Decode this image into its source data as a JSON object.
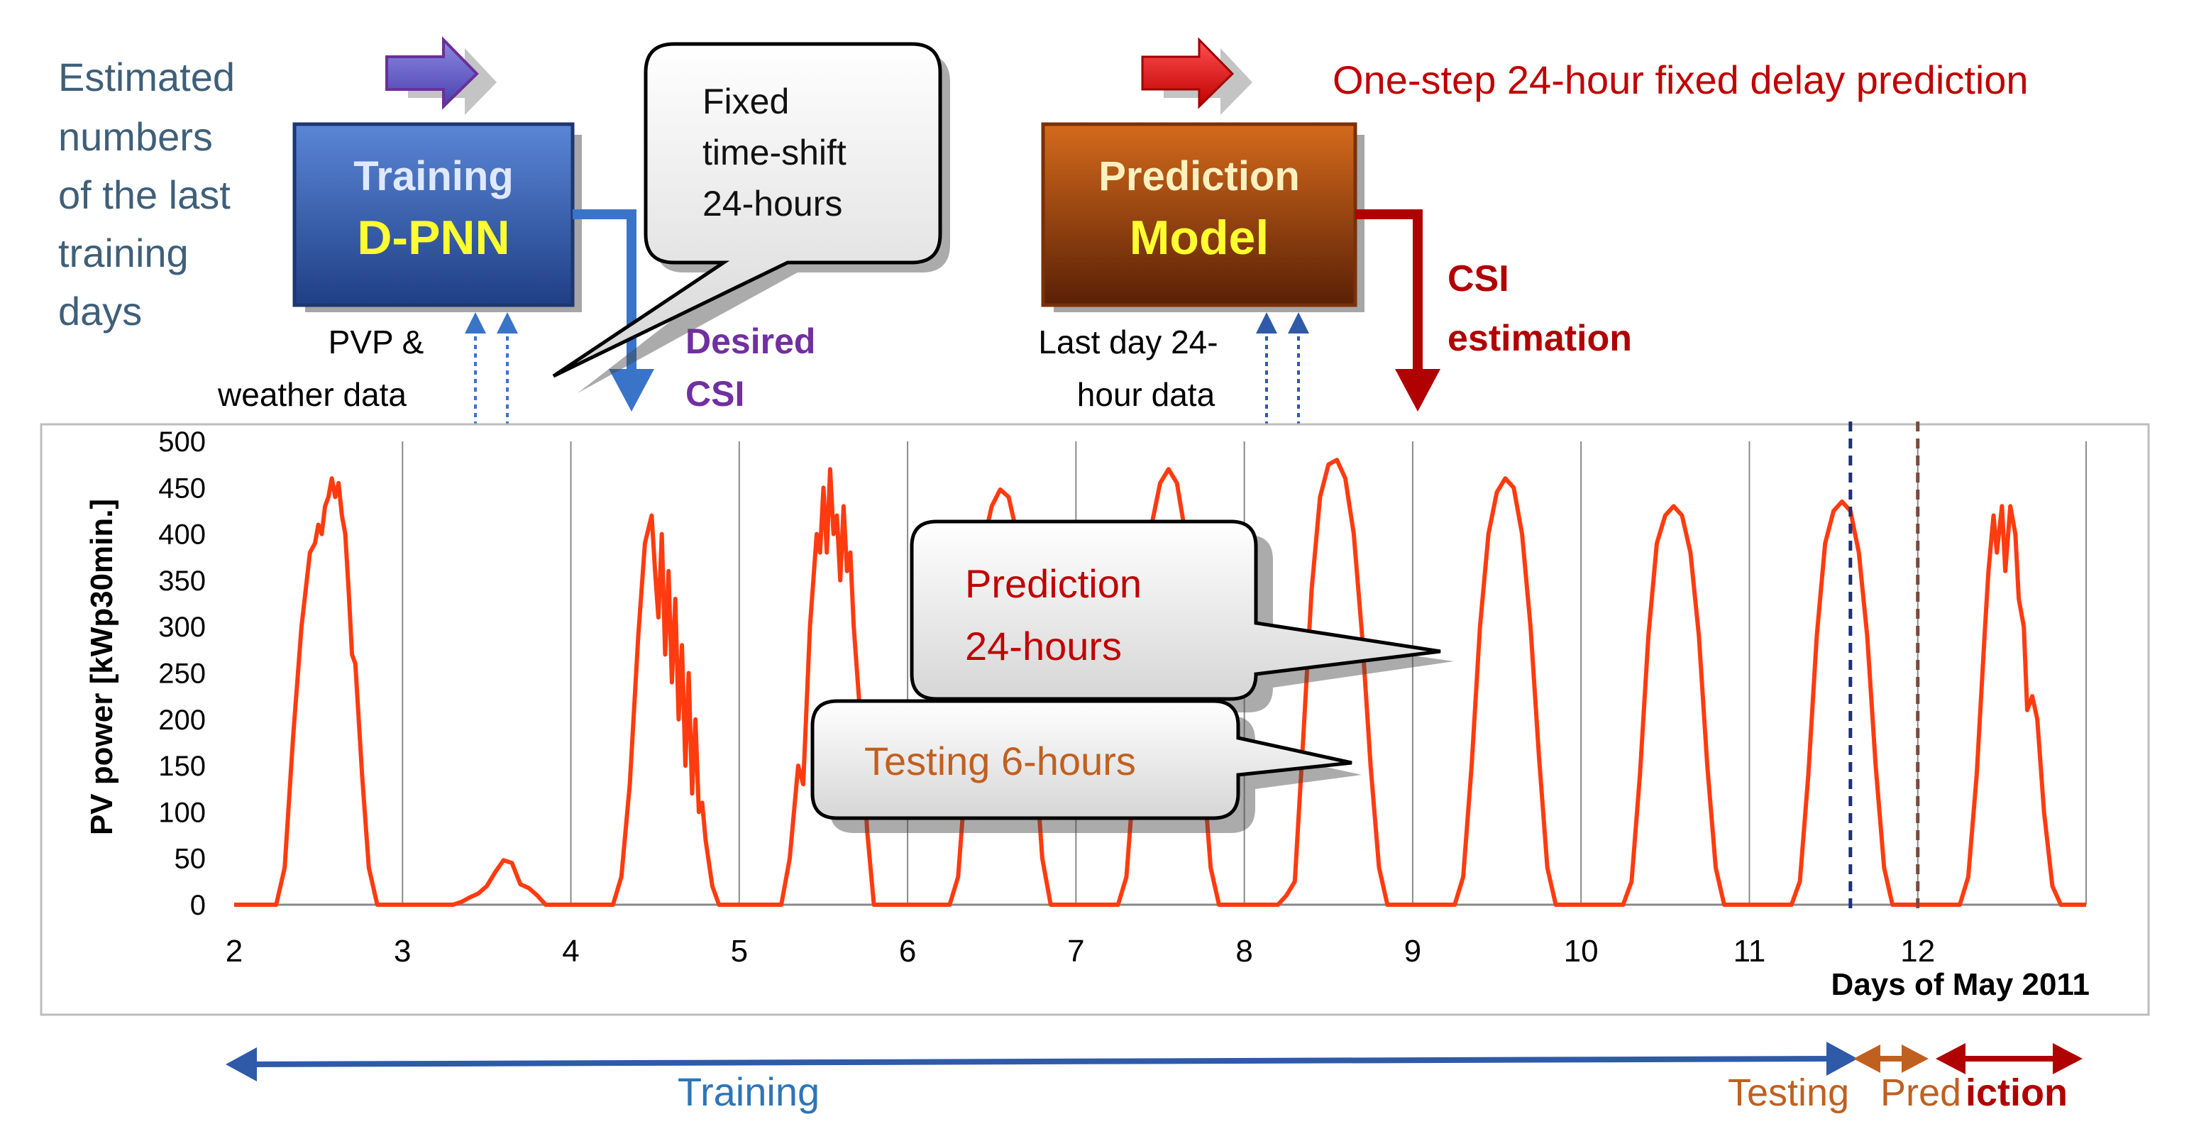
{
  "header": {
    "left_note_lines": [
      "Estimated",
      "numbers",
      "of the last",
      "training",
      "days"
    ],
    "right_note": "One-step 24-hour fixed delay prediction"
  },
  "training_box": {
    "line1": "Training",
    "line2": "D-PNN"
  },
  "prediction_box": {
    "line1": "Prediction",
    "line2": "Model"
  },
  "callout_timeshift": {
    "lines": [
      "Fixed",
      "time-shift",
      "24-hours"
    ]
  },
  "callout_prediction": {
    "lines": [
      "Prediction",
      "24-hours"
    ]
  },
  "callout_testing": {
    "text": "Testing 6-hours"
  },
  "labels": {
    "pvp_weather": [
      "PVP &",
      "weather data"
    ],
    "desired_csi": [
      "Desired",
      "CSI"
    ],
    "last_day": [
      "Last day 24-",
      "hour data"
    ],
    "csi_estimation": [
      "CSI",
      "estimation"
    ]
  },
  "bottom": {
    "training": "Training",
    "testing": "Testing",
    "prediction_a": "Pred",
    "prediction_b": "iction"
  },
  "colors": {
    "series": "#ff3b0f",
    "training_blue": "#2e5aa8",
    "prediction_orange": "#b85410",
    "dark_red": "#b00000",
    "note_teal": "#3f5f79",
    "testing_orange": "#c06020",
    "purple": "#7030a0"
  },
  "chart_data": {
    "type": "line",
    "title": "",
    "xlabel": "Days of May 2011",
    "ylabel": "PV power [kWp30min.]",
    "xlim": [
      2,
      13
    ],
    "ylim": [
      0,
      500
    ],
    "x_ticks": [
      2,
      3,
      4,
      5,
      6,
      7,
      8,
      9,
      10,
      11,
      12
    ],
    "y_ticks": [
      0,
      50,
      100,
      150,
      200,
      250,
      300,
      350,
      400,
      450,
      500
    ],
    "grid": "vertical lines at each day",
    "legend": "none",
    "series": [
      {
        "values_note": "x in days of May 2011, y in kWp30min.",
        "points": [
          [
            2.0,
            0
          ],
          [
            2.25,
            0
          ],
          [
            2.3,
            40
          ],
          [
            2.35,
            180
          ],
          [
            2.4,
            300
          ],
          [
            2.45,
            380
          ],
          [
            2.48,
            390
          ],
          [
            2.5,
            410
          ],
          [
            2.52,
            400
          ],
          [
            2.54,
            430
          ],
          [
            2.56,
            440
          ],
          [
            2.58,
            460
          ],
          [
            2.6,
            440
          ],
          [
            2.62,
            455
          ],
          [
            2.64,
            420
          ],
          [
            2.66,
            400
          ],
          [
            2.68,
            340
          ],
          [
            2.7,
            270
          ],
          [
            2.72,
            260
          ],
          [
            2.76,
            140
          ],
          [
            2.8,
            40
          ],
          [
            2.85,
            0
          ],
          [
            3.3,
            0
          ],
          [
            3.35,
            3
          ],
          [
            3.4,
            8
          ],
          [
            3.45,
            12
          ],
          [
            3.5,
            20
          ],
          [
            3.55,
            35
          ],
          [
            3.6,
            48
          ],
          [
            3.65,
            45
          ],
          [
            3.7,
            22
          ],
          [
            3.75,
            18
          ],
          [
            3.8,
            10
          ],
          [
            3.85,
            0
          ],
          [
            4.25,
            0
          ],
          [
            4.3,
            30
          ],
          [
            4.35,
            130
          ],
          [
            4.4,
            290
          ],
          [
            4.44,
            390
          ],
          [
            4.48,
            420
          ],
          [
            4.5,
            360
          ],
          [
            4.52,
            310
          ],
          [
            4.54,
            400
          ],
          [
            4.56,
            270
          ],
          [
            4.58,
            360
          ],
          [
            4.6,
            240
          ],
          [
            4.62,
            330
          ],
          [
            4.64,
            200
          ],
          [
            4.66,
            280
          ],
          [
            4.68,
            150
          ],
          [
            4.7,
            250
          ],
          [
            4.72,
            120
          ],
          [
            4.74,
            200
          ],
          [
            4.76,
            100
          ],
          [
            4.78,
            110
          ],
          [
            4.8,
            70
          ],
          [
            4.84,
            20
          ],
          [
            4.88,
            0
          ],
          [
            5.25,
            0
          ],
          [
            5.3,
            50
          ],
          [
            5.35,
            150
          ],
          [
            5.38,
            130
          ],
          [
            5.42,
            300
          ],
          [
            5.46,
            400
          ],
          [
            5.48,
            380
          ],
          [
            5.5,
            450
          ],
          [
            5.52,
            380
          ],
          [
            5.54,
            470
          ],
          [
            5.56,
            400
          ],
          [
            5.58,
            420
          ],
          [
            5.6,
            350
          ],
          [
            5.62,
            430
          ],
          [
            5.64,
            360
          ],
          [
            5.66,
            380
          ],
          [
            5.68,
            300
          ],
          [
            5.72,
            200
          ],
          [
            5.76,
            80
          ],
          [
            5.8,
            0
          ],
          [
            6.25,
            0
          ],
          [
            6.3,
            30
          ],
          [
            6.35,
            150
          ],
          [
            6.4,
            300
          ],
          [
            6.45,
            390
          ],
          [
            6.5,
            430
          ],
          [
            6.55,
            448
          ],
          [
            6.6,
            440
          ],
          [
            6.65,
            400
          ],
          [
            6.7,
            320
          ],
          [
            6.75,
            180
          ],
          [
            6.8,
            50
          ],
          [
            6.85,
            0
          ],
          [
            7.25,
            0
          ],
          [
            7.3,
            30
          ],
          [
            7.35,
            150
          ],
          [
            7.4,
            300
          ],
          [
            7.45,
            410
          ],
          [
            7.5,
            455
          ],
          [
            7.55,
            470
          ],
          [
            7.6,
            455
          ],
          [
            7.65,
            400
          ],
          [
            7.7,
            300
          ],
          [
            7.75,
            160
          ],
          [
            7.8,
            40
          ],
          [
            7.85,
            0
          ],
          [
            8.2,
            0
          ],
          [
            8.25,
            10
          ],
          [
            8.3,
            25
          ],
          [
            8.35,
            180
          ],
          [
            8.4,
            340
          ],
          [
            8.45,
            440
          ],
          [
            8.5,
            475
          ],
          [
            8.55,
            480
          ],
          [
            8.6,
            460
          ],
          [
            8.65,
            400
          ],
          [
            8.7,
            290
          ],
          [
            8.75,
            150
          ],
          [
            8.8,
            40
          ],
          [
            8.85,
            0
          ],
          [
            9.25,
            0
          ],
          [
            9.3,
            30
          ],
          [
            9.35,
            150
          ],
          [
            9.4,
            300
          ],
          [
            9.45,
            400
          ],
          [
            9.5,
            445
          ],
          [
            9.55,
            460
          ],
          [
            9.6,
            450
          ],
          [
            9.65,
            400
          ],
          [
            9.7,
            300
          ],
          [
            9.75,
            160
          ],
          [
            9.8,
            40
          ],
          [
            9.85,
            0
          ],
          [
            10.25,
            0
          ],
          [
            10.3,
            25
          ],
          [
            10.35,
            140
          ],
          [
            10.4,
            290
          ],
          [
            10.45,
            390
          ],
          [
            10.5,
            420
          ],
          [
            10.55,
            430
          ],
          [
            10.6,
            420
          ],
          [
            10.65,
            380
          ],
          [
            10.7,
            290
          ],
          [
            10.75,
            150
          ],
          [
            10.8,
            40
          ],
          [
            10.85,
            0
          ],
          [
            11.25,
            0
          ],
          [
            11.3,
            25
          ],
          [
            11.35,
            140
          ],
          [
            11.4,
            290
          ],
          [
            11.45,
            390
          ],
          [
            11.5,
            425
          ],
          [
            11.55,
            435
          ],
          [
            11.6,
            425
          ],
          [
            11.65,
            380
          ],
          [
            11.7,
            290
          ],
          [
            11.75,
            150
          ],
          [
            11.8,
            40
          ],
          [
            11.85,
            0
          ],
          [
            12.25,
            0
          ],
          [
            12.3,
            30
          ],
          [
            12.35,
            140
          ],
          [
            12.4,
            300
          ],
          [
            12.42,
            360
          ],
          [
            12.45,
            420
          ],
          [
            12.47,
            380
          ],
          [
            12.5,
            430
          ],
          [
            12.52,
            360
          ],
          [
            12.55,
            430
          ],
          [
            12.58,
            400
          ],
          [
            12.6,
            330
          ],
          [
            12.63,
            300
          ],
          [
            12.65,
            210
          ],
          [
            12.68,
            225
          ],
          [
            12.71,
            200
          ],
          [
            12.75,
            100
          ],
          [
            12.8,
            20
          ],
          [
            12.85,
            0
          ],
          [
            13.0,
            0
          ]
        ]
      }
    ],
    "annotations": {
      "training_end_day": 11.6,
      "testing_end_day": 12.0,
      "prediction_end_day": 13.0
    }
  }
}
